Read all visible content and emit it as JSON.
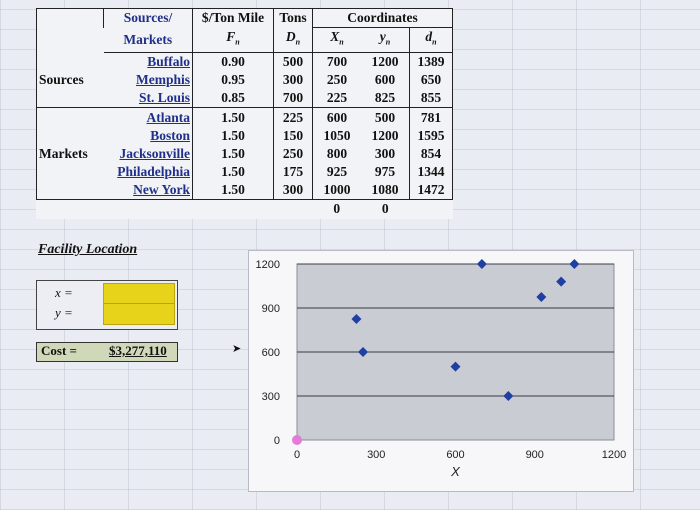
{
  "table": {
    "header": {
      "sources_markets_1": "Sources/",
      "sources_markets_2": "Markets",
      "rate_1": "$/Ton Mile",
      "rate_2": "F",
      "rate_sub": "n",
      "tons_1": "Tons",
      "tons_2": "D",
      "tons_sub": "n",
      "coords": "Coordinates",
      "x_col": "X",
      "x_sub": "n",
      "y_col": "y",
      "y_sub": "n",
      "d_col": "d",
      "d_sub": "n"
    },
    "group_sources": "Sources",
    "group_markets": "Markets",
    "rows": [
      {
        "name": "Buffalo",
        "f": "0.90",
        "d": "500",
        "x": "700",
        "y": "1200",
        "dn": "1389"
      },
      {
        "name": "Memphis",
        "f": "0.95",
        "d": "300",
        "x": "250",
        "y": "600",
        "dn": "650"
      },
      {
        "name": "St. Louis",
        "f": "0.85",
        "d": "700",
        "x": "225",
        "y": "825",
        "dn": "855"
      },
      {
        "name": "Atlanta",
        "f": "1.50",
        "d": "225",
        "x": "600",
        "y": "500",
        "dn": "781"
      },
      {
        "name": "Boston",
        "f": "1.50",
        "d": "150",
        "x": "1050",
        "y": "1200",
        "dn": "1595"
      },
      {
        "name": "Jacksonville",
        "f": "1.50",
        "d": "250",
        "x": "800",
        "y": "300",
        "dn": "854"
      },
      {
        "name": "Philadelphia",
        "f": "1.50",
        "d": "175",
        "x": "925",
        "y": "975",
        "dn": "1344"
      },
      {
        "name": "New York",
        "f": "1.50",
        "d": "300",
        "x": "1000",
        "y": "1080",
        "dn": "1472"
      }
    ],
    "totals_x": "0",
    "totals_y": "0"
  },
  "facility": {
    "title": "Facility Location",
    "x_label": "x =",
    "y_label": "y =",
    "x_value": "",
    "y_value": "",
    "cost_label": "Cost =",
    "cost_value": "$3,277,110"
  },
  "colors": {
    "marker": "#1f3fa3",
    "facility_marker": "#e57bd8",
    "input_fill": "#e6d31a"
  },
  "chart_data": {
    "type": "scatter",
    "xlabel": "X",
    "ylabel": "",
    "x_ticks": [
      "0",
      "300",
      "600",
      "900",
      "1200"
    ],
    "y_ticks": [
      "0",
      "300",
      "600",
      "900",
      "1200"
    ],
    "xlim": [
      0,
      1200
    ],
    "ylim": [
      0,
      1200
    ],
    "grid": "horizontal",
    "series": [
      {
        "points": [
          [
            700,
            1200
          ],
          [
            250,
            600
          ],
          [
            225,
            825
          ],
          [
            600,
            500
          ],
          [
            1050,
            1200
          ],
          [
            800,
            300
          ],
          [
            925,
            975
          ],
          [
            1000,
            1080
          ]
        ],
        "marker": "diamond"
      },
      {
        "points": [
          [
            0,
            0
          ]
        ],
        "marker": "circle"
      }
    ]
  }
}
